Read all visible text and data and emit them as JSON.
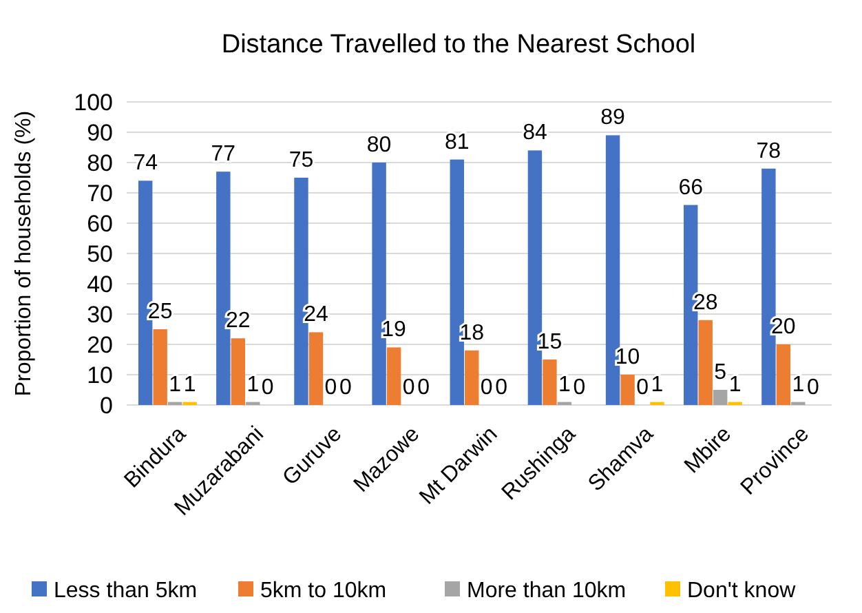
{
  "chart_data": {
    "type": "bar",
    "title": "Distance Travelled to the Nearest School",
    "ylabel": "Proportion of households (%)",
    "categories": [
      "Bindura",
      "Muzarabani",
      "Guruve",
      "Mazowe",
      "Mt Darwin",
      "Rushinga",
      "Shamva",
      "Mbire",
      "Province"
    ],
    "series": [
      {
        "name": "Less than 5km",
        "color": "#4472c4",
        "values": [
          74,
          77,
          75,
          80,
          81,
          84,
          89,
          66,
          78
        ]
      },
      {
        "name": "5km to 10km",
        "color": "#ed7d31",
        "values": [
          25,
          22,
          24,
          19,
          18,
          15,
          10,
          28,
          20
        ]
      },
      {
        "name": "More than 10km",
        "color": "#a5a5a5",
        "values": [
          1,
          1,
          0,
          0,
          0,
          1,
          0,
          5,
          1
        ]
      },
      {
        "name": "Don't know",
        "color": "#ffc000",
        "values": [
          1,
          0,
          0,
          0,
          0,
          0,
          1,
          1,
          0
        ]
      }
    ],
    "ylim": [
      0,
      100
    ],
    "yticks": [
      0,
      10,
      20,
      30,
      40,
      50,
      60,
      70,
      80,
      90,
      100
    ],
    "grid": "y",
    "legend": "bottom",
    "data_labels": true
  }
}
